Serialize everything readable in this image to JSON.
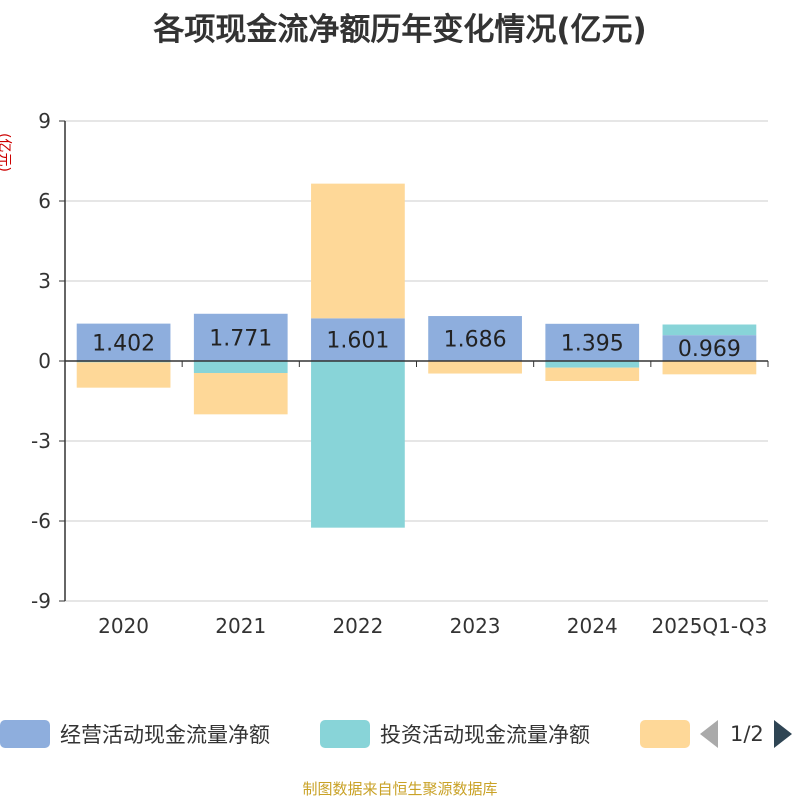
{
  "chart_data": {
    "type": "bar",
    "stacked": true,
    "title": "各项现金流净额历年变化情况(亿元)",
    "ylabel": "(亿元)",
    "categories": [
      "2020",
      "2021",
      "2022",
      "2023",
      "2024",
      "2025Q1-Q3"
    ],
    "yticks": [
      9,
      6,
      3,
      0,
      -3,
      -6,
      -9
    ],
    "ylim": [
      -9,
      9
    ],
    "grid": true,
    "legend_position": "bottom",
    "series": [
      {
        "name": "经营活动现金流量净额",
        "color": "#8eaedd",
        "values": [
          1.402,
          1.771,
          1.601,
          1.686,
          1.395,
          0.969
        ],
        "labels": [
          "1.402",
          "1.771",
          "1.601",
          "1.686",
          "1.395",
          "0.969"
        ]
      },
      {
        "name": "投资活动现金流量净额",
        "color": "#88d4d8",
        "values": [
          -0.05,
          -0.45,
          -6.25,
          -0.02,
          -0.25,
          0.4
        ]
      },
      {
        "name": "",
        "color": "#fed898",
        "values": [
          -0.95,
          -1.55,
          5.05,
          -0.45,
          -0.5,
          -0.5
        ]
      }
    ]
  },
  "legend": {
    "page": "1/2"
  },
  "source": "制图数据来自恒生聚源数据库"
}
